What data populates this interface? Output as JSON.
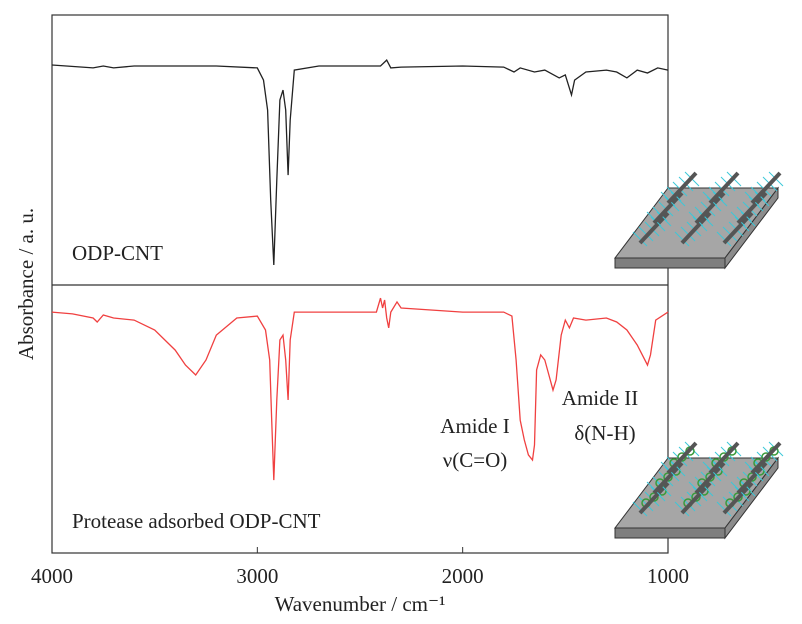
{
  "chart_data": [
    {
      "type": "line",
      "ylabel": "Absorbance / a. u.",
      "xlim": [
        4000,
        1000
      ],
      "ylim": [
        0,
        100
      ],
      "x": [
        4000,
        3800,
        3750,
        3700,
        3600,
        3200,
        3000,
        2970,
        2950,
        2935,
        2920,
        2905,
        2890,
        2875,
        2862,
        2850,
        2840,
        2820,
        2700,
        2400,
        2370,
        2350,
        2300,
        2000,
        1800,
        1750,
        1720,
        1650,
        1600,
        1530,
        1500,
        1470,
        1455,
        1400,
        1300,
        1250,
        1200,
        1150,
        1100,
        1050,
        1000
      ],
      "series": [
        {
          "name": "ODP-CNT",
          "color": "#222222",
          "values": [
            81.5,
            80.4,
            81.1,
            80.4,
            81.1,
            81.1,
            80.4,
            75.9,
            64.8,
            31.5,
            7.4,
            38.9,
            68.5,
            72.2,
            64.8,
            40.7,
            61.1,
            79.6,
            81.1,
            81.1,
            83.3,
            80.4,
            80.7,
            81.1,
            80.7,
            78.9,
            80.4,
            78.9,
            79.6,
            76.7,
            77.8,
            70.4,
            75.9,
            78.9,
            79.6,
            78.9,
            76.7,
            79.6,
            78.5,
            80.4,
            79.6
          ]
        }
      ]
    },
    {
      "type": "line",
      "xlabel": "Wavenumber / cm⁻¹",
      "xlim": [
        4000,
        1000
      ],
      "xticks": [
        4000,
        3000,
        2000,
        1000
      ],
      "ylim": [
        0,
        100
      ],
      "x": [
        4000,
        3900,
        3800,
        3780,
        3750,
        3700,
        3600,
        3500,
        3400,
        3350,
        3300,
        3250,
        3200,
        3100,
        3000,
        2960,
        2940,
        2930,
        2920,
        2905,
        2890,
        2875,
        2862,
        2850,
        2840,
        2820,
        2500,
        2420,
        2400,
        2390,
        2380,
        2370,
        2360,
        2350,
        2320,
        2300,
        2000,
        1800,
        1760,
        1740,
        1720,
        1700,
        1680,
        1660,
        1650,
        1640,
        1620,
        1600,
        1580,
        1560,
        1545,
        1520,
        1500,
        1480,
        1460,
        1400,
        1300,
        1250,
        1200,
        1150,
        1100,
        1085,
        1060,
        1000
      ],
      "series": [
        {
          "name": "Protease adsorbed ODP-CNT",
          "color": "#f04040",
          "values": [
            89.9,
            89.2,
            87.7,
            86.2,
            88.8,
            87.7,
            86.9,
            83.2,
            75.7,
            70.1,
            66.4,
            72.0,
            81.3,
            87.7,
            88.4,
            83.2,
            72.0,
            49.6,
            27.2,
            57.1,
            79.5,
            81.3,
            72.0,
            57.1,
            79.5,
            89.9,
            89.9,
            89.9,
            95.1,
            91.4,
            94.4,
            87.7,
            84.0,
            89.9,
            93.7,
            91.4,
            89.9,
            89.9,
            88.4,
            72.0,
            49.6,
            42.2,
            36.6,
            34.7,
            40.3,
            68.3,
            73.9,
            72.0,
            66.4,
            60.8,
            64.6,
            81.3,
            86.9,
            84.0,
            87.7,
            86.9,
            87.7,
            86.2,
            83.2,
            77.6,
            70.1,
            73.9,
            86.9,
            89.9
          ]
        }
      ],
      "annotations": [
        "Amide I",
        "ν(C=O)",
        "Amide II",
        "δ(N-H)"
      ]
    }
  ]
}
